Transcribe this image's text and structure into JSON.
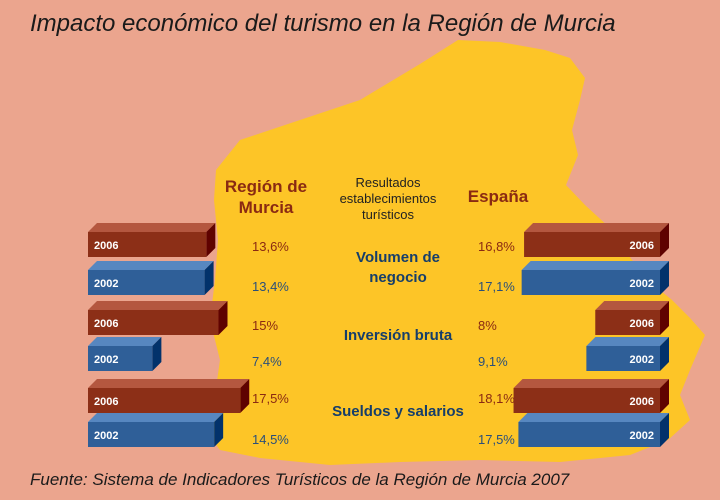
{
  "title": "Impacto económico del turismo en la Región de Murcia",
  "source": "Fuente: Sistema de Indicadores Turísticos de la Región de Murcia 2007",
  "colors": {
    "y2006": "#8c2f17",
    "y2002": "#2f5f98",
    "map": "#fdc527",
    "background": "#eba58e",
    "accent_text": "#8a2a12",
    "metric_text": "#163e6a"
  },
  "chart_data": {
    "type": "bar",
    "column_headers": {
      "left": "Región de Murcia",
      "center": "Resultados establecimientos turísticos",
      "right": "España"
    },
    "metrics": [
      {
        "name": "Volumen de negocio",
        "murcia": {
          "2006": 13.6,
          "2002": 13.4
        },
        "espana": {
          "2006": 16.8,
          "2002": 17.1
        },
        "labels": {
          "murcia": {
            "2006": "13,6%",
            "2002": "13,4%"
          },
          "espana": {
            "2006": "16,8%",
            "2002": "17,1%"
          }
        }
      },
      {
        "name": "Inversión bruta",
        "murcia": {
          "2006": 15,
          "2002": 7.4
        },
        "espana": {
          "2006": 8,
          "2002": 9.1
        },
        "labels": {
          "murcia": {
            "2006": "15%",
            "2002": "7,4%"
          },
          "espana": {
            "2006": "8%",
            "2002": "9,1%"
          }
        }
      },
      {
        "name": "Sueldos y salarios",
        "murcia": {
          "2006": 17.5,
          "2002": 14.5
        },
        "espana": {
          "2006": 18.1,
          "2002": 17.5
        },
        "labels": {
          "murcia": {
            "2006": "17,5%",
            "2002": "14,5%"
          },
          "espana": {
            "2006": "18,1%",
            "2002": "17,5%"
          }
        }
      }
    ],
    "years": [
      "2006",
      "2002"
    ]
  }
}
